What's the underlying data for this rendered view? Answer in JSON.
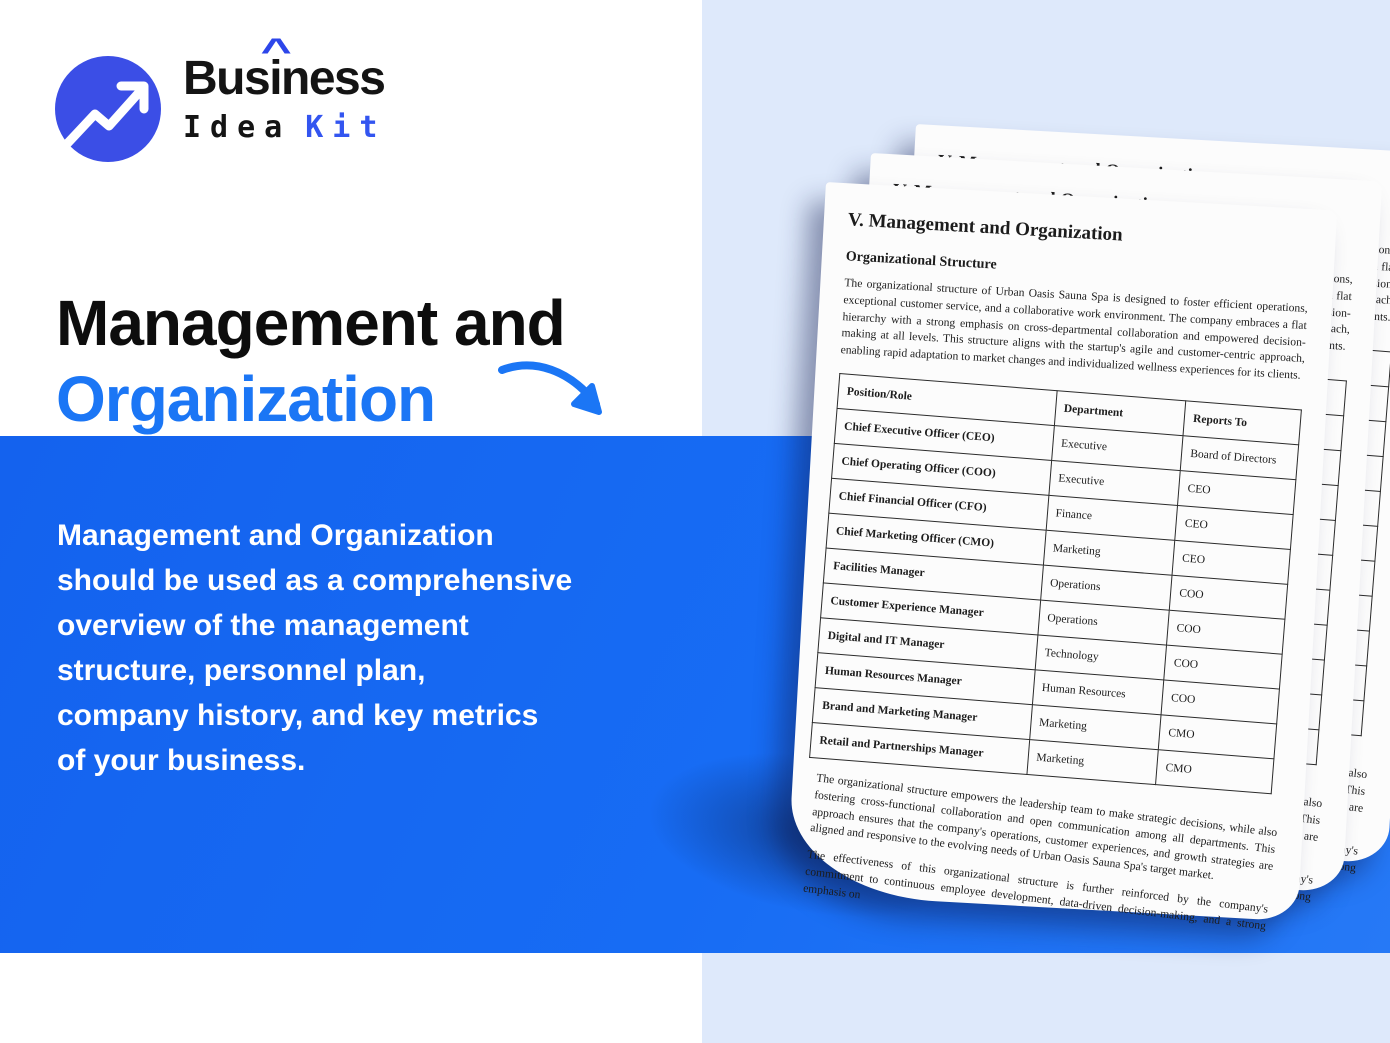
{
  "brand": {
    "logo": {
      "pre": "Bus",
      "i_letter": "i",
      "caret": "^",
      "post": "ness",
      "word_idea": "Idea",
      "word_kit": "Kit"
    }
  },
  "hero": {
    "title_line1": "Management and",
    "title_line2": "Organization",
    "description": "Management and Organization\nshould be used as a comprehensive\noverview of the management\nstructure, personnel plan,\ncompany history, and key metrics\nof your business."
  },
  "doc": {
    "title": "V. Management and Organization",
    "section_heading": "Organizational Structure",
    "intro": "The organizational structure of Urban Oasis Sauna Spa is designed to foster efficient operations, exceptional customer service, and a collaborative work environment. The company embraces a flat hierarchy with a strong emphasis on cross-departmental collaboration and empowered decision-making at all levels. This structure aligns with the startup's agile and customer-centric approach, enabling rapid adaptation to market changes and individualized wellness experiences for its clients.",
    "table": {
      "headers": [
        "Position/Role",
        "Department",
        "Reports To"
      ],
      "rows": [
        [
          "Chief Executive Officer (CEO)",
          "Executive",
          "Board of Directors"
        ],
        [
          "Chief Operating Officer (COO)",
          "Executive",
          "CEO"
        ],
        [
          "Chief Financial Officer (CFO)",
          "Finance",
          "CEO"
        ],
        [
          "Chief Marketing Officer (CMO)",
          "Marketing",
          "CEO"
        ],
        [
          "Facilities Manager",
          "Operations",
          "COO"
        ],
        [
          "Customer Experience Manager",
          "Operations",
          "COO"
        ],
        [
          "Digital and IT Manager",
          "Technology",
          "COO"
        ],
        [
          "Human Resources Manager",
          "Human Resources",
          "COO"
        ],
        [
          "Brand and Marketing Manager",
          "Marketing",
          "CMO"
        ],
        [
          "Retail and Partnerships Manager",
          "Marketing",
          "CMO"
        ]
      ]
    },
    "para2": "The organizational structure empowers the leadership team to make strategic decisions, while also fostering cross-functional collaboration and open communication among all departments. This approach ensures that the company's operations, customer experiences, and growth strategies are aligned and responsive to the evolving needs of Urban Oasis Sauna Spa's target market.",
    "para3": "The effectiveness of this organizational structure is further reinforced by the company's commitment to continuous employee development, data-driven decision-making, and a strong emphasis on"
  },
  "colors": {
    "band_blue": "#1565f0",
    "accent_blue": "#1b76f5",
    "logo_circle_blue": "#3b4ee6",
    "kit_blue": "#3355f0",
    "panel_light_blue": "#dee9fb",
    "paper_white": "#fcfcfc",
    "text_black": "#141414",
    "text_white": "#ffffff"
  }
}
